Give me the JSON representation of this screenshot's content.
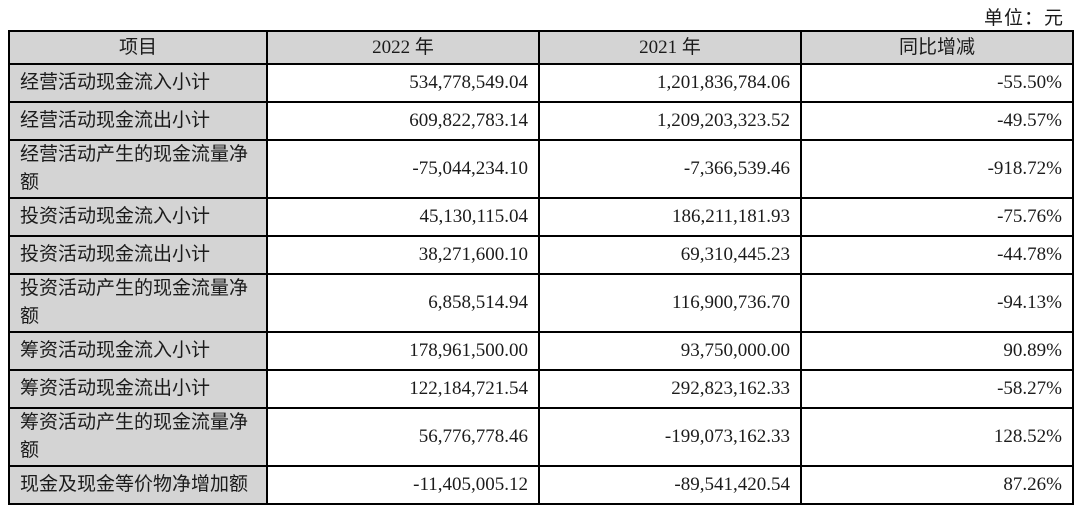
{
  "unit_note": "单位：元",
  "colors": {
    "header_bg": "#d4d4d4",
    "label_bg": "#d4d4d4",
    "cell_bg": "#ffffff",
    "border": "#000000",
    "text": "#1b1b1b"
  },
  "table": {
    "columns": [
      "项目",
      "2022 年",
      "2021 年",
      "同比增减"
    ],
    "rows": [
      {
        "label": "经营活动现金流入小计",
        "y2022": "534,778,549.04",
        "y2021": "1,201,836,784.06",
        "yoy": "-55.50%"
      },
      {
        "label": "经营活动现金流出小计",
        "y2022": "609,822,783.14",
        "y2021": "1,209,203,323.52",
        "yoy": "-49.57%"
      },
      {
        "label": "经营活动产生的现金流量净额",
        "y2022": "-75,044,234.10",
        "y2021": "-7,366,539.46",
        "yoy": "-918.72%"
      },
      {
        "label": "投资活动现金流入小计",
        "y2022": "45,130,115.04",
        "y2021": "186,211,181.93",
        "yoy": "-75.76%"
      },
      {
        "label": "投资活动现金流出小计",
        "y2022": "38,271,600.10",
        "y2021": "69,310,445.23",
        "yoy": "-44.78%"
      },
      {
        "label": "投资活动产生的现金流量净额",
        "y2022": "6,858,514.94",
        "y2021": "116,900,736.70",
        "yoy": "-94.13%"
      },
      {
        "label": "筹资活动现金流入小计",
        "y2022": "178,961,500.00",
        "y2021": "93,750,000.00",
        "yoy": "90.89%"
      },
      {
        "label": "筹资活动现金流出小计",
        "y2022": "122,184,721.54",
        "y2021": "292,823,162.33",
        "yoy": "-58.27%"
      },
      {
        "label": "筹资活动产生的现金流量净额",
        "y2022": "56,776,778.46",
        "y2021": "-199,073,162.33",
        "yoy": "128.52%"
      },
      {
        "label": "现金及现金等价物净增加额",
        "y2022": "-11,405,005.12",
        "y2021": "-89,541,420.54",
        "yoy": "87.26%"
      }
    ]
  }
}
